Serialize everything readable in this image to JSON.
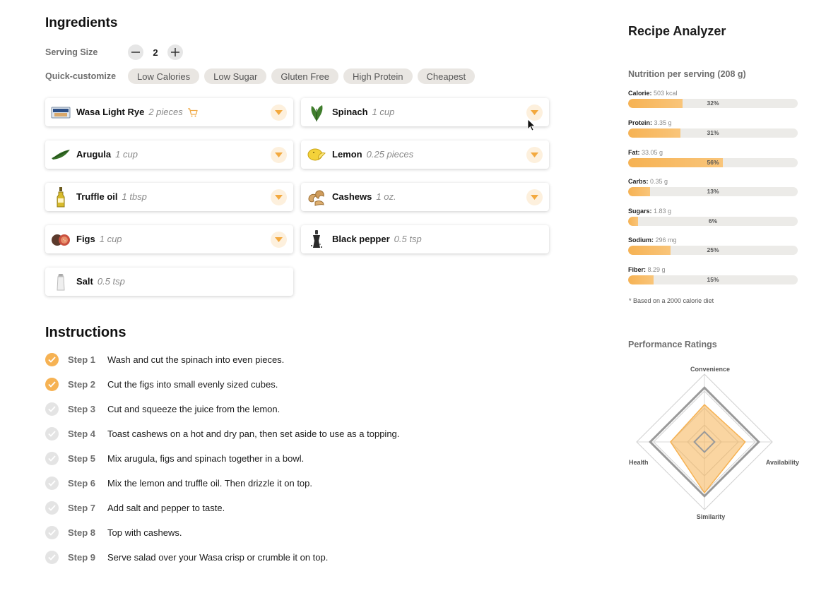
{
  "ingredients": {
    "title": "Ingredients",
    "serving_label": "Serving Size",
    "serving_value": "2",
    "quick_label": "Quick-customize",
    "chips": [
      "Low Calories",
      "Low Sugar",
      "Gluten Free",
      "High Protein",
      "Cheapest"
    ],
    "items": [
      {
        "name": "Wasa Light Rye",
        "qty": "2 pieces",
        "icon": "wasa-crispbread-icon",
        "cart": true,
        "dropdown": true
      },
      {
        "name": "Spinach",
        "qty": "1 cup",
        "icon": "spinach-icon",
        "cart": false,
        "dropdown": true
      },
      {
        "name": "Arugula",
        "qty": "1 cup",
        "icon": "arugula-icon",
        "cart": false,
        "dropdown": true
      },
      {
        "name": "Lemon",
        "qty": "0.25 pieces",
        "icon": "lemon-icon",
        "cart": false,
        "dropdown": true
      },
      {
        "name": "Truffle oil",
        "qty": "1 tbsp",
        "icon": "oil-bottle-icon",
        "cart": false,
        "dropdown": true
      },
      {
        "name": "Cashews",
        "qty": "1 oz.",
        "icon": "cashews-icon",
        "cart": false,
        "dropdown": true
      },
      {
        "name": "Figs",
        "qty": "1 cup",
        "icon": "figs-icon",
        "cart": false,
        "dropdown": true
      },
      {
        "name": "Black pepper",
        "qty": "0.5 tsp",
        "icon": "pepper-grinder-icon",
        "cart": false,
        "dropdown": false
      },
      {
        "name": "Salt",
        "qty": "0.5 tsp",
        "icon": "salt-shaker-icon",
        "cart": false,
        "dropdown": false
      }
    ]
  },
  "instructions": {
    "title": "Instructions",
    "steps": [
      {
        "label": "Step 1",
        "text": "Wash and cut the spinach into even pieces.",
        "done": true
      },
      {
        "label": "Step 2",
        "text": "Cut the figs into small evenly sized cubes.",
        "done": true
      },
      {
        "label": "Step 3",
        "text": "Cut and squeeze the juice from the lemon.",
        "done": false
      },
      {
        "label": "Step 4",
        "text": "Toast cashews on a hot and dry pan, then set aside to use as a topping.",
        "done": false
      },
      {
        "label": "Step 5",
        "text": "Mix arugula, figs and spinach together in a bowl.",
        "done": false
      },
      {
        "label": "Step 6",
        "text": "Mix the lemon and truffle oil. Then drizzle it on top.",
        "done": false
      },
      {
        "label": "Step 7",
        "text": "Add salt and pepper to taste.",
        "done": false
      },
      {
        "label": "Step 8",
        "text": "Top with cashews.",
        "done": false
      },
      {
        "label": "Step 9",
        "text": "Serve salad over your Wasa crisp or crumble it on top.",
        "done": false
      }
    ]
  },
  "analyzer": {
    "title": "Recipe Analyzer",
    "nutrition_title": "Nutrition per serving (208 g)",
    "nutrients": [
      {
        "name": "Calorie:",
        "amount": "503 kcal",
        "percent": 32
      },
      {
        "name": "Protein:",
        "amount": "3.35 g",
        "percent": 31
      },
      {
        "name": "Fat:",
        "amount": "33.05 g",
        "percent": 56
      },
      {
        "name": "Carbs:",
        "amount": "0.35 g",
        "percent": 13
      },
      {
        "name": "Sugars:",
        "amount": "1.83 g",
        "percent": 6
      },
      {
        "name": "Sodium:",
        "amount": "296 mg",
        "percent": 25
      },
      {
        "name": "Fiber:",
        "amount": "8.29 g",
        "percent": 15
      }
    ],
    "note": "* Based on a 2000 calorie diet",
    "performance_title": "Performance Ratings",
    "radar": {
      "axes": [
        "Convenience",
        "Availability",
        "Similarity",
        "Health"
      ],
      "series_values": [
        0.55,
        0.6,
        0.75,
        0.5
      ],
      "reference_values": [
        0.8,
        0.8,
        0.8,
        0.8
      ]
    }
  },
  "colors": {
    "accent": "#f6b253",
    "accent_light": "#fdf0dd",
    "track": "#ecebe8",
    "chip_bg": "#e9e6e2"
  }
}
